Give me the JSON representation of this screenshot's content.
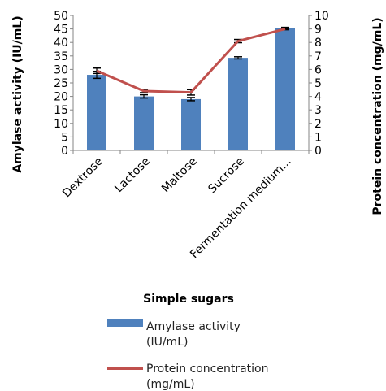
{
  "chart_data": {
    "type": "bar",
    "categories": [
      "Dextrose",
      "Lactose",
      "Maltose",
      "Sucrose",
      "Fermentation medium..."
    ],
    "series": [
      {
        "name": "Amylase activity (IU/mL)",
        "type": "bar",
        "axis": "left",
        "color": "#4F81BD",
        "values": [
          28,
          20,
          19,
          34.3,
          45.3
        ],
        "error": [
          1.3,
          0.6,
          0.6,
          0.4,
          0.3
        ]
      },
      {
        "name": "Protein concentration (mg/mL)",
        "type": "line",
        "axis": "right",
        "color": "#C0504D",
        "values": [
          5.9,
          4.4,
          4.3,
          8.1,
          9.0
        ],
        "error": [
          0.2,
          0.12,
          0.2,
          0.12,
          0.06
        ]
      }
    ],
    "xlabel": "Simple sugars",
    "ylabel": "Amylase activity (IU/mL)",
    "y2label": "Protein concentration (mg/mL)",
    "ylim": [
      0,
      50
    ],
    "y2lim": [
      0,
      10
    ],
    "yticks": [
      "0",
      "5",
      "10",
      "15",
      "20",
      "25",
      "30",
      "35",
      "40",
      "45",
      "50"
    ],
    "y2ticks": [
      "0",
      "1",
      "2",
      "3",
      "4",
      "5",
      "6",
      "7",
      "8",
      "9",
      "10"
    ],
    "legend": {
      "position": "bottom",
      "entries": [
        {
          "lines": [
            "Amylase activity",
            "(IU/mL)"
          ],
          "marker": "bar"
        },
        {
          "lines": [
            "Protein concentration",
            "(mg/mL)"
          ],
          "marker": "line"
        }
      ]
    },
    "grid": false
  }
}
